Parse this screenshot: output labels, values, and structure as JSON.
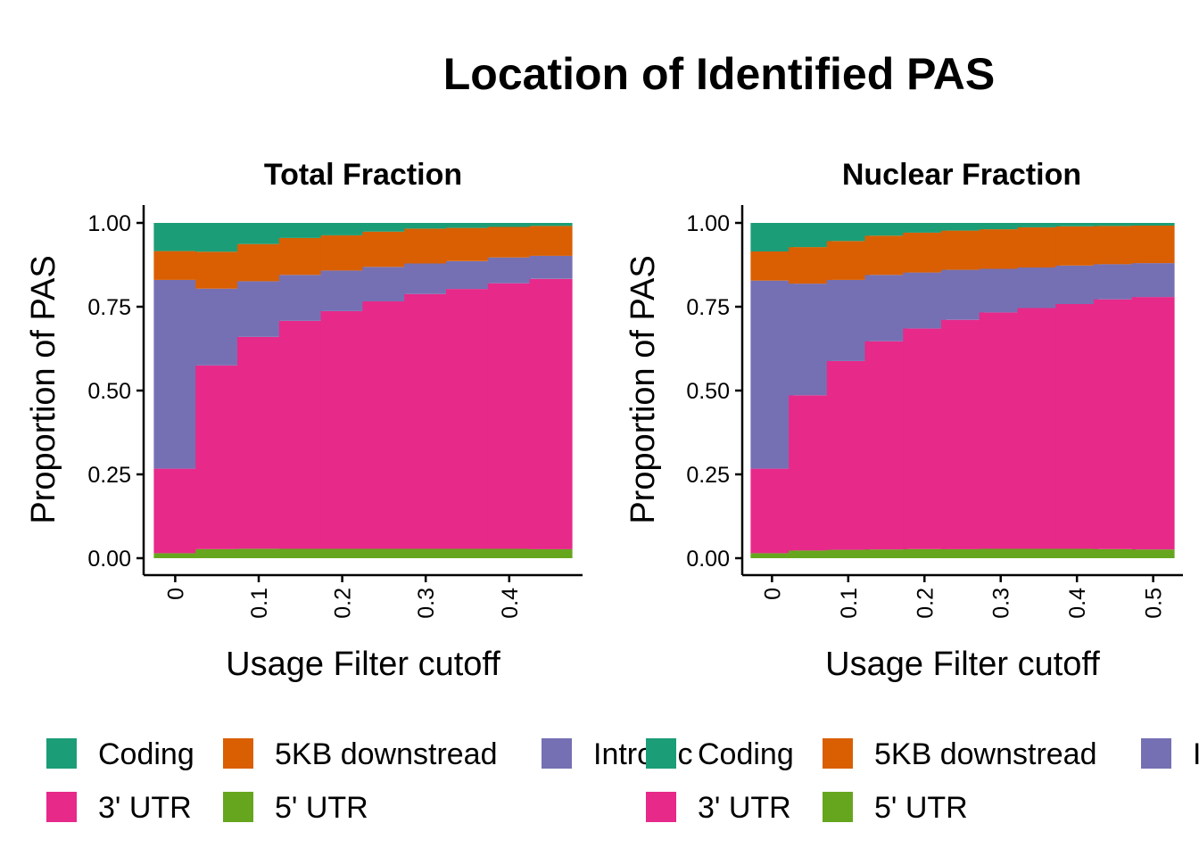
{
  "chart_data": {
    "type": "bar",
    "stacked": true,
    "title": "Location of Identified PAS",
    "colors": {
      "Coding": "#1B9E77",
      "5KB downstread": "#D95F02",
      "Intronic": "#7570B3",
      "3' UTR": "#E7298A",
      "5' UTR": "#66A61E"
    },
    "legend": [
      "Coding",
      "5KB downstread",
      "Intronic",
      "3' UTR",
      "5' UTR"
    ],
    "panels": [
      {
        "title": "Total Fraction",
        "xlabel": "Usage Filter cutoff",
        "ylabel": "Proportion of PAS",
        "ylim": [
          0,
          1
        ],
        "yticks": [
          "0.00",
          "0.25",
          "0.50",
          "0.75",
          "1.00"
        ],
        "xlim": [
          -0.025,
          0.475
        ],
        "xticks": [
          "0",
          "0.1",
          "0.2",
          "0.3",
          "0.4"
        ],
        "x": [
          0,
          0.05,
          0.1,
          0.15,
          0.2,
          0.25,
          0.3,
          0.35,
          0.4,
          0.45
        ],
        "stack_order": [
          "5' UTR",
          "3' UTR",
          "Intronic",
          "5KB downstread",
          "Coding"
        ],
        "series": [
          {
            "name": "5' UTR",
            "values": [
              0.015,
              0.027,
              0.028,
              0.028,
              0.028,
              0.028,
              0.028,
              0.028,
              0.028,
              0.027
            ]
          },
          {
            "name": "3' UTR",
            "values": [
              0.252,
              0.548,
              0.632,
              0.68,
              0.709,
              0.738,
              0.76,
              0.775,
              0.792,
              0.806
            ]
          },
          {
            "name": "Intronic",
            "values": [
              0.563,
              0.229,
              0.166,
              0.137,
              0.121,
              0.103,
              0.091,
              0.083,
              0.077,
              0.069
            ]
          },
          {
            "name": "5KB downstread",
            "values": [
              0.086,
              0.11,
              0.111,
              0.11,
              0.105,
              0.105,
              0.104,
              0.099,
              0.091,
              0.089
            ]
          },
          {
            "name": "Coding",
            "values": [
              0.084,
              0.086,
              0.063,
              0.045,
              0.037,
              0.026,
              0.017,
              0.015,
              0.012,
              0.009
            ]
          }
        ]
      },
      {
        "title": "Nuclear Fraction",
        "xlabel": "Usage Filter cutoff",
        "ylabel": "Proportion of PAS",
        "ylim": [
          0,
          1
        ],
        "yticks": [
          "0.00",
          "0.25",
          "0.50",
          "0.75",
          "1.00"
        ],
        "xlim": [
          -0.025,
          0.525
        ],
        "xticks": [
          "0",
          "0.1",
          "0.2",
          "0.3",
          "0.4",
          "0.5"
        ],
        "x": [
          0,
          0.05,
          0.1,
          0.15,
          0.2,
          0.25,
          0.3,
          0.35,
          0.4,
          0.45,
          0.5
        ],
        "stack_order": [
          "5' UTR",
          "3' UTR",
          "Intronic",
          "5KB downstread",
          "Coding"
        ],
        "series": [
          {
            "name": "5' UTR",
            "values": [
              0.015,
              0.023,
              0.025,
              0.026,
              0.027,
              0.027,
              0.028,
              0.028,
              0.028,
              0.027,
              0.026
            ]
          },
          {
            "name": "3' UTR",
            "values": [
              0.252,
              0.463,
              0.563,
              0.621,
              0.658,
              0.684,
              0.705,
              0.718,
              0.73,
              0.745,
              0.753
            ]
          },
          {
            "name": "Intronic",
            "values": [
              0.561,
              0.333,
              0.242,
              0.198,
              0.167,
              0.149,
              0.13,
              0.121,
              0.115,
              0.105,
              0.101
            ]
          },
          {
            "name": "5KB downstread",
            "values": [
              0.087,
              0.109,
              0.116,
              0.117,
              0.119,
              0.117,
              0.118,
              0.12,
              0.117,
              0.114,
              0.112
            ]
          },
          {
            "name": "Coding",
            "values": [
              0.085,
              0.072,
              0.054,
              0.038,
              0.029,
              0.023,
              0.019,
              0.013,
              0.01,
              0.009,
              0.008
            ]
          }
        ]
      }
    ]
  }
}
